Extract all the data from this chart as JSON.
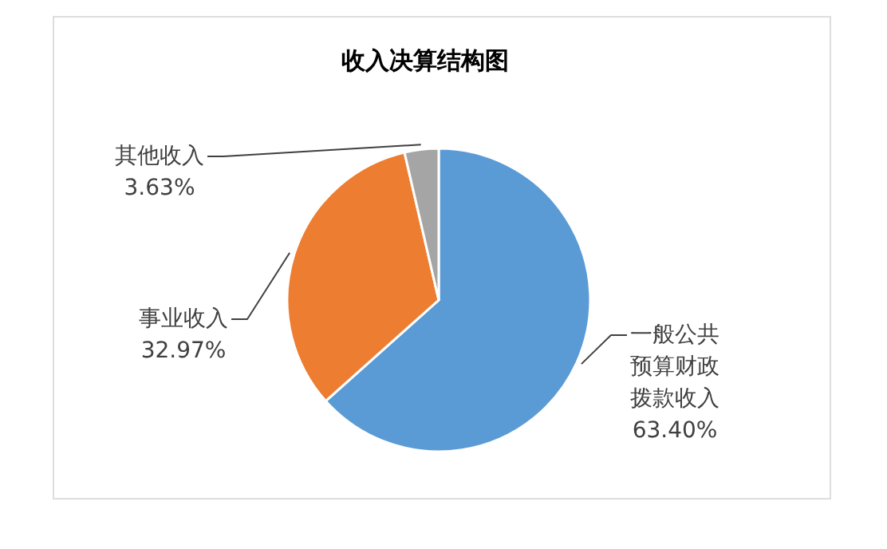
{
  "chart_data": {
    "type": "pie",
    "title": "收入决算结构图",
    "categories": [
      "一般公共预算财政拨款收入",
      "事业收入",
      "其他收入"
    ],
    "values": [
      63.4,
      32.97,
      3.63
    ],
    "colors": [
      "#5b9bd5",
      "#ed7d31",
      "#a5a5a5"
    ],
    "value_labels": [
      "63.40%",
      "32.97%",
      "3.63%"
    ]
  }
}
